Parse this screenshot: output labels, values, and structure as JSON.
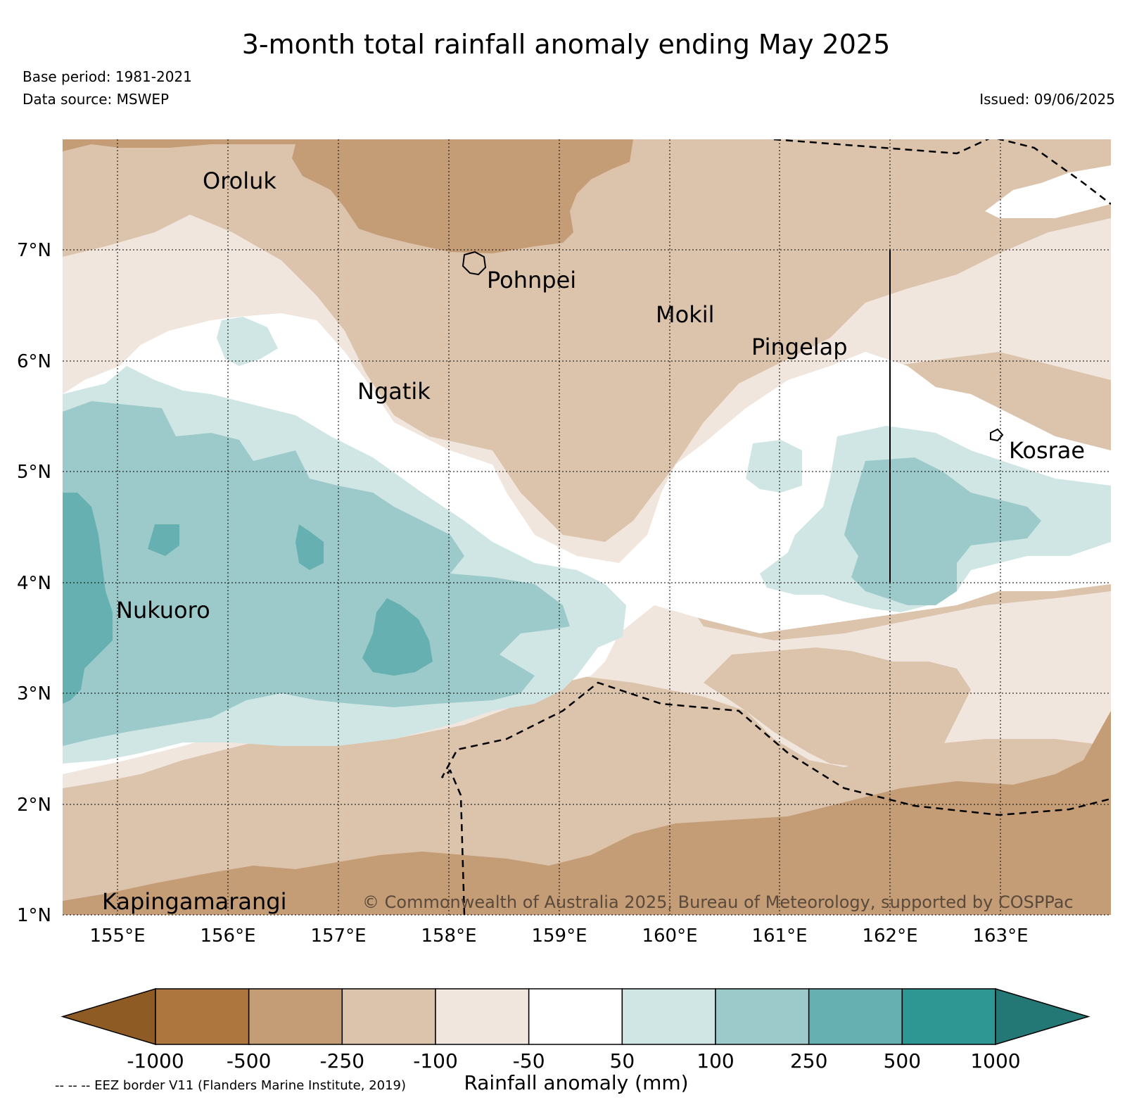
{
  "header": {
    "title": "3-month total rainfall anomaly ending May 2025",
    "base_period": "Base period: 1981-2021",
    "data_source": "Data source: MSWEP",
    "issued": "Issued: 09/06/2025"
  },
  "map": {
    "lon_range": [
      154.5,
      164.0
    ],
    "lat_range": [
      1.0,
      8.0
    ],
    "grid": true,
    "lon_ticks": [
      {
        "value": 155,
        "label": "155°E"
      },
      {
        "value": 156,
        "label": "156°E"
      },
      {
        "value": 157,
        "label": "157°E"
      },
      {
        "value": 158,
        "label": "158°E"
      },
      {
        "value": 159,
        "label": "159°E"
      },
      {
        "value": 160,
        "label": "160°E"
      },
      {
        "value": 161,
        "label": "161°E"
      },
      {
        "value": 162,
        "label": "162°E"
      },
      {
        "value": 163,
        "label": "163°E"
      }
    ],
    "lat_ticks": [
      {
        "value": 7,
        "label": "7°N"
      },
      {
        "value": 6,
        "label": "6°N"
      },
      {
        "value": 5,
        "label": "5°N"
      },
      {
        "value": 4,
        "label": "4°N"
      },
      {
        "value": 3,
        "label": "3°N"
      },
      {
        "value": 2,
        "label": "2°N"
      },
      {
        "value": 1,
        "label": "1°N"
      }
    ],
    "places": [
      {
        "name": "Oroluk",
        "lon": 155.8,
        "lat": 7.68
      },
      {
        "name": "Pohnpei",
        "lon": 158.22,
        "lat": 6.88
      },
      {
        "name": "Mokil",
        "lon": 159.77,
        "lat": 6.68
      },
      {
        "name": "Pingelap",
        "lon": 160.7,
        "lat": 6.21
      },
      {
        "name": "Ngatik",
        "lon": 157.13,
        "lat": 5.8
      },
      {
        "name": "Kosrae",
        "lon": 162.98,
        "lat": 5.32
      },
      {
        "name": "Nukuoro",
        "lon": 154.96,
        "lat": 3.85
      },
      {
        "name": "Kapingamarangi",
        "lon": 154.78,
        "lat": 1.07
      }
    ],
    "copyright": "© Commonwealth of Australia 2025, Bureau of Meteorology, supported by COSPPac"
  },
  "colorbar": {
    "title": "Rainfall anomaly (mm)",
    "tick_labels": [
      "-1000",
      "-500",
      "-250",
      "-100",
      "-50",
      "50",
      "100",
      "250",
      "500",
      "1000"
    ],
    "colors": [
      "#8f5b25",
      "#ad763f",
      "#c49c76",
      "#dcc3ab",
      "#f0e6dd",
      "#ffffff",
      "#cfe6e5",
      "#9ccacb",
      "#66b0b1",
      "#2e9693",
      "#237875"
    ]
  },
  "footnote": "-- -- -- EEZ border V11 (Flanders Marine Institute, 2019)"
}
